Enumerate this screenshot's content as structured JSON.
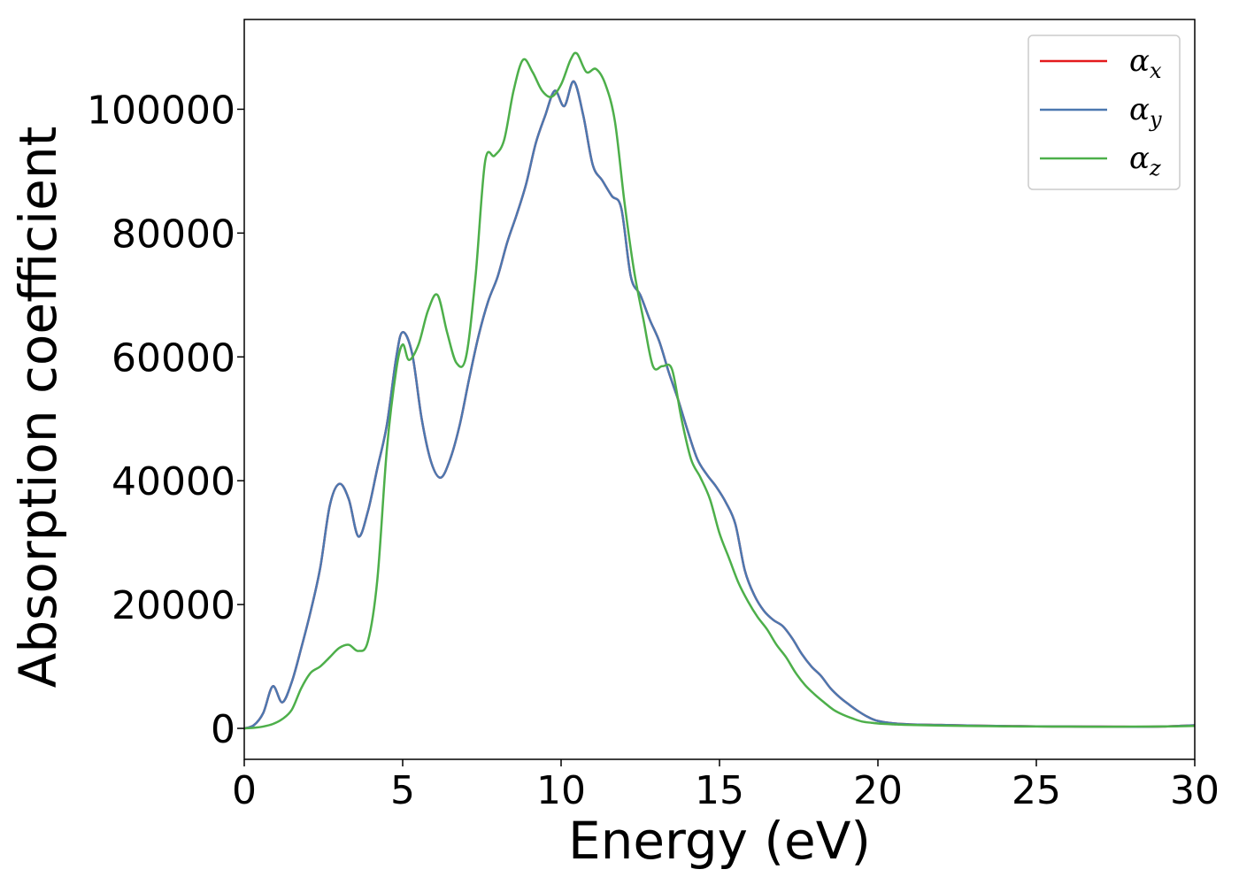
{
  "chart_data": {
    "type": "line",
    "title": "",
    "xlabel": "Energy (eV)",
    "ylabel": "Absorption coefficient",
    "xlim": [
      0,
      30
    ],
    "ylim": [
      -5000,
      114500
    ],
    "xticks": [
      0,
      5,
      10,
      15,
      20,
      25,
      30
    ],
    "yticks": [
      0,
      20000,
      40000,
      60000,
      80000,
      100000
    ],
    "grid": false,
    "legend_position": "top-right",
    "series": [
      {
        "name": "αx",
        "symbol": "α",
        "subscript": "x",
        "color": "#e41a1c",
        "x": [
          0,
          0.3,
          0.6,
          0.9,
          1.2,
          1.5,
          1.8,
          2.1,
          2.4,
          2.7,
          3.0,
          3.3,
          3.6,
          3.9,
          4.2,
          4.5,
          4.8,
          5.0,
          5.3,
          5.6,
          5.9,
          6.2,
          6.5,
          6.8,
          7.1,
          7.4,
          7.7,
          8.0,
          8.3,
          8.6,
          8.9,
          9.2,
          9.5,
          9.8,
          10.1,
          10.4,
          10.7,
          11.0,
          11.3,
          11.6,
          11.9,
          12.2,
          12.5,
          12.8,
          13.1,
          13.4,
          13.7,
          14.0,
          14.3,
          14.6,
          14.9,
          15.2,
          15.5,
          15.8,
          16.1,
          16.4,
          16.7,
          17.0,
          17.3,
          17.6,
          17.9,
          18.2,
          18.5,
          18.8,
          19.1,
          19.4,
          19.7,
          20.0,
          20.5,
          21.0,
          22.0,
          23.0,
          24.0,
          25.0,
          26.0,
          27.0,
          28.0,
          29.0,
          30.0
        ],
        "y": [
          0,
          500,
          2500,
          6800,
          4200,
          7500,
          13000,
          19000,
          26000,
          36000,
          39500,
          37000,
          31000,
          35000,
          42000,
          49000,
          60000,
          64000,
          60500,
          50000,
          43000,
          40500,
          43500,
          49000,
          56500,
          63500,
          69000,
          73000,
          78500,
          83000,
          88000,
          94500,
          99000,
          103000,
          100500,
          104500,
          99000,
          91000,
          88500,
          86000,
          84000,
          73000,
          70000,
          66000,
          62500,
          57500,
          53000,
          48000,
          43500,
          41000,
          39000,
          36500,
          33000,
          25500,
          21500,
          19000,
          17500,
          16500,
          14500,
          12000,
          10000,
          8500,
          6500,
          5000,
          3800,
          2700,
          1800,
          1200,
          800,
          650,
          550,
          450,
          380,
          330,
          300,
          280,
          260,
          300,
          500
        ]
      },
      {
        "name": "αy",
        "symbol": "α",
        "subscript": "y",
        "color": "#4c78b0",
        "x": [
          0,
          0.3,
          0.6,
          0.9,
          1.2,
          1.5,
          1.8,
          2.1,
          2.4,
          2.7,
          3.0,
          3.3,
          3.6,
          3.9,
          4.2,
          4.5,
          4.8,
          5.0,
          5.3,
          5.6,
          5.9,
          6.2,
          6.5,
          6.8,
          7.1,
          7.4,
          7.7,
          8.0,
          8.3,
          8.6,
          8.9,
          9.2,
          9.5,
          9.8,
          10.1,
          10.4,
          10.7,
          11.0,
          11.3,
          11.6,
          11.9,
          12.2,
          12.5,
          12.8,
          13.1,
          13.4,
          13.7,
          14.0,
          14.3,
          14.6,
          14.9,
          15.2,
          15.5,
          15.8,
          16.1,
          16.4,
          16.7,
          17.0,
          17.3,
          17.6,
          17.9,
          18.2,
          18.5,
          18.8,
          19.1,
          19.4,
          19.7,
          20.0,
          20.5,
          21.0,
          22.0,
          23.0,
          24.0,
          25.0,
          26.0,
          27.0,
          28.0,
          29.0,
          30.0
        ],
        "y": [
          0,
          500,
          2500,
          6800,
          4200,
          7500,
          13000,
          19000,
          26000,
          36000,
          39500,
          37000,
          31000,
          35000,
          42000,
          49000,
          60000,
          64000,
          60500,
          50000,
          43000,
          40500,
          43500,
          49000,
          56500,
          63500,
          69000,
          73000,
          78500,
          83000,
          88000,
          94500,
          99000,
          103000,
          100500,
          104500,
          99000,
          91000,
          88500,
          86000,
          84000,
          73000,
          70000,
          66000,
          62500,
          57500,
          53000,
          48000,
          43500,
          41000,
          39000,
          36500,
          33000,
          25500,
          21500,
          19000,
          17500,
          16500,
          14500,
          12000,
          10000,
          8500,
          6500,
          5000,
          3800,
          2700,
          1800,
          1200,
          800,
          650,
          550,
          450,
          380,
          330,
          300,
          280,
          260,
          300,
          500
        ]
      },
      {
        "name": "αz",
        "symbol": "α",
        "subscript": "z",
        "color": "#4daf4a",
        "x": [
          0,
          0.3,
          0.6,
          0.9,
          1.2,
          1.5,
          1.8,
          2.1,
          2.4,
          2.7,
          3.0,
          3.3,
          3.6,
          3.9,
          4.2,
          4.5,
          4.8,
          5.0,
          5.2,
          5.5,
          5.8,
          6.1,
          6.4,
          6.7,
          7.0,
          7.3,
          7.6,
          7.9,
          8.2,
          8.5,
          8.8,
          9.1,
          9.4,
          9.7,
          10.0,
          10.3,
          10.5,
          10.8,
          11.1,
          11.4,
          11.7,
          12.0,
          12.3,
          12.6,
          12.9,
          13.2,
          13.5,
          13.8,
          14.1,
          14.4,
          14.7,
          15.0,
          15.3,
          15.6,
          15.9,
          16.2,
          16.5,
          16.8,
          17.1,
          17.4,
          17.7,
          18.0,
          18.3,
          18.6,
          18.9,
          19.2,
          19.5,
          19.8,
          20.1,
          20.5,
          21.0,
          22.0,
          23.0,
          24.0,
          25.0,
          26.0,
          27.0,
          28.0,
          29.0,
          30.0
        ],
        "y": [
          0,
          100,
          300,
          700,
          1500,
          3000,
          6500,
          9000,
          10000,
          11500,
          13000,
          13500,
          12500,
          14000,
          24000,
          45000,
          58000,
          62000,
          59500,
          62000,
          67500,
          70000,
          64000,
          59000,
          60000,
          73000,
          91500,
          92500,
          95000,
          103000,
          108000,
          106000,
          103000,
          102000,
          104000,
          108000,
          109000,
          106000,
          106500,
          104000,
          98000,
          85000,
          74000,
          66000,
          58500,
          58500,
          58000,
          50000,
          43500,
          40500,
          37000,
          31500,
          27500,
          23500,
          20500,
          18000,
          16000,
          13500,
          11500,
          9000,
          7000,
          5500,
          4200,
          3000,
          2200,
          1600,
          1100,
          900,
          750,
          650,
          550,
          450,
          380,
          330,
          300,
          280,
          260,
          280,
          300,
          400
        ]
      }
    ]
  }
}
